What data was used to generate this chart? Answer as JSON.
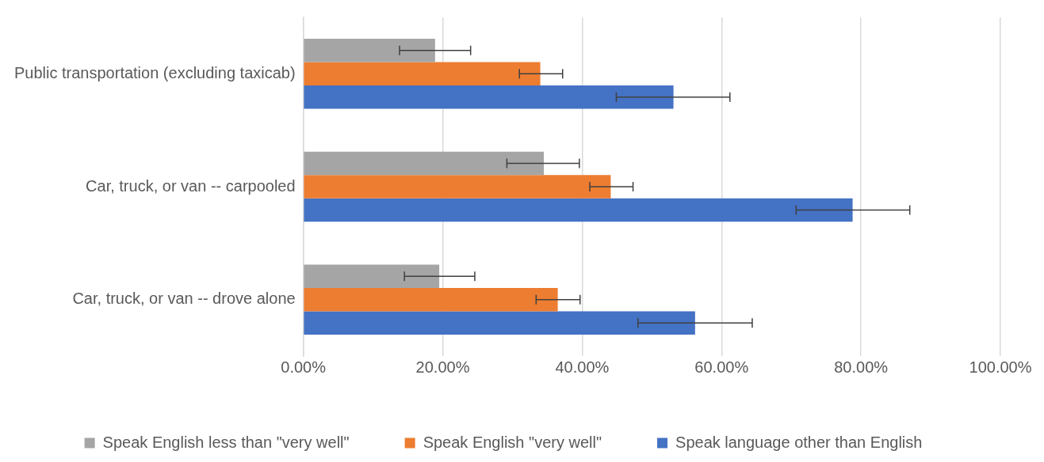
{
  "chart_data": {
    "type": "bar",
    "orientation": "horizontal",
    "categories": [
      "Public transportation (excluding taxicab)",
      "Car, truck, or van -- carpooled",
      "Car, truck, or van -- drove alone"
    ],
    "series": [
      {
        "name": "Speak English less than \"very well\"",
        "color": "#a5a5a5",
        "values": [
          18.9,
          34.5,
          19.5
        ],
        "errors": [
          [
            13.8,
            24.0
          ],
          [
            29.2,
            39.6
          ],
          [
            14.5,
            24.6
          ]
        ]
      },
      {
        "name": "Speak English \"very well\"",
        "color": "#ed7d31",
        "values": [
          34.0,
          44.1,
          36.5
        ],
        "errors": [
          [
            31.0,
            37.2
          ],
          [
            41.1,
            47.3
          ],
          [
            33.4,
            39.7
          ]
        ]
      },
      {
        "name": "Speak language other than English",
        "color": "#4472c4",
        "values": [
          53.1,
          78.8,
          56.2
        ],
        "errors": [
          [
            44.9,
            61.2
          ],
          [
            70.7,
            87.0
          ],
          [
            48.0,
            64.4
          ]
        ]
      }
    ],
    "xlim": [
      0,
      100
    ],
    "xticks": [
      {
        "value": 0,
        "label": "0.00%"
      },
      {
        "value": 20,
        "label": "20.00%"
      },
      {
        "value": 40,
        "label": "40.00%"
      },
      {
        "value": 60,
        "label": "60.00%"
      },
      {
        "value": 80,
        "label": "80.00%"
      },
      {
        "value": 100,
        "label": "100.00%"
      }
    ],
    "grid": "x",
    "legend": "bottom"
  }
}
